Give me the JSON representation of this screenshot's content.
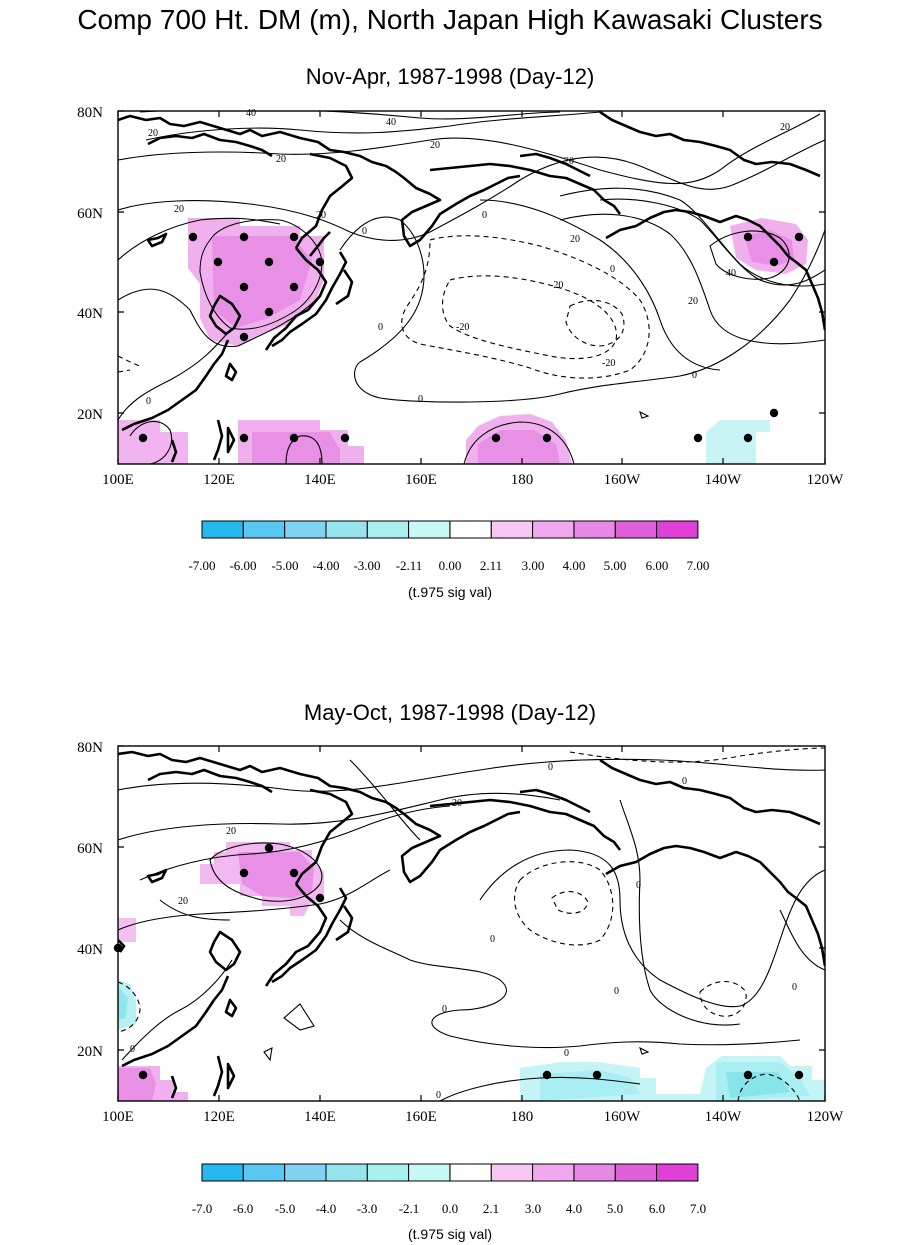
{
  "title": "Comp 700 Ht. DM (m), North Japan High Kawasaki Clusters",
  "panels": [
    {
      "subtitle": "Nov-Apr, 1987-1998 (Day-12)",
      "lat_labels": [
        "80N",
        "60N",
        "40N",
        "20N"
      ],
      "lon_labels": [
        "100E",
        "120E",
        "140E",
        "160E",
        "180",
        "160W",
        "140W",
        "120W"
      ],
      "colorbar": {
        "labels": [
          "-7.00",
          "-6.00",
          "-5.00",
          "-4.00",
          "-3.00",
          "-2.11",
          "0.00",
          "2.11",
          "3.00",
          "4.00",
          "5.00",
          "6.00",
          "7.00"
        ],
        "title": "(t.975 sig val)"
      },
      "contour_labels": [
        "40",
        "40",
        "20",
        "20",
        "20",
        "20",
        "20",
        "20",
        "20",
        "20",
        "20",
        "0",
        "0",
        "0",
        "0",
        "0",
        "0",
        "-20",
        "-20",
        "-20",
        "40",
        "0"
      ],
      "colors": {
        "positive": "#e040d8",
        "negative": "#30d8e0"
      }
    },
    {
      "subtitle": "May-Oct, 1987-1998 (Day-12)",
      "lat_labels": [
        "80N",
        "60N",
        "40N",
        "20N"
      ],
      "lon_labels": [
        "100E",
        "120E",
        "140E",
        "160E",
        "180",
        "160W",
        "140W",
        "120W"
      ],
      "colorbar": {
        "labels": [
          "-7.0",
          "-6.0",
          "-5.0",
          "-4.0",
          "-3.0",
          "-2.1",
          "0.0",
          "2.1",
          "3.0",
          "4.0",
          "5.0",
          "6.0",
          "7.0"
        ],
        "title": "(t.975 sig val)"
      },
      "contour_labels": [
        "20",
        "20",
        "20",
        "0",
        "0",
        "0",
        "0",
        "0",
        "0",
        "0",
        "0",
        "0",
        "0"
      ],
      "colors": {
        "positive": "#e040d8",
        "negative": "#30d8e0"
      }
    }
  ]
}
